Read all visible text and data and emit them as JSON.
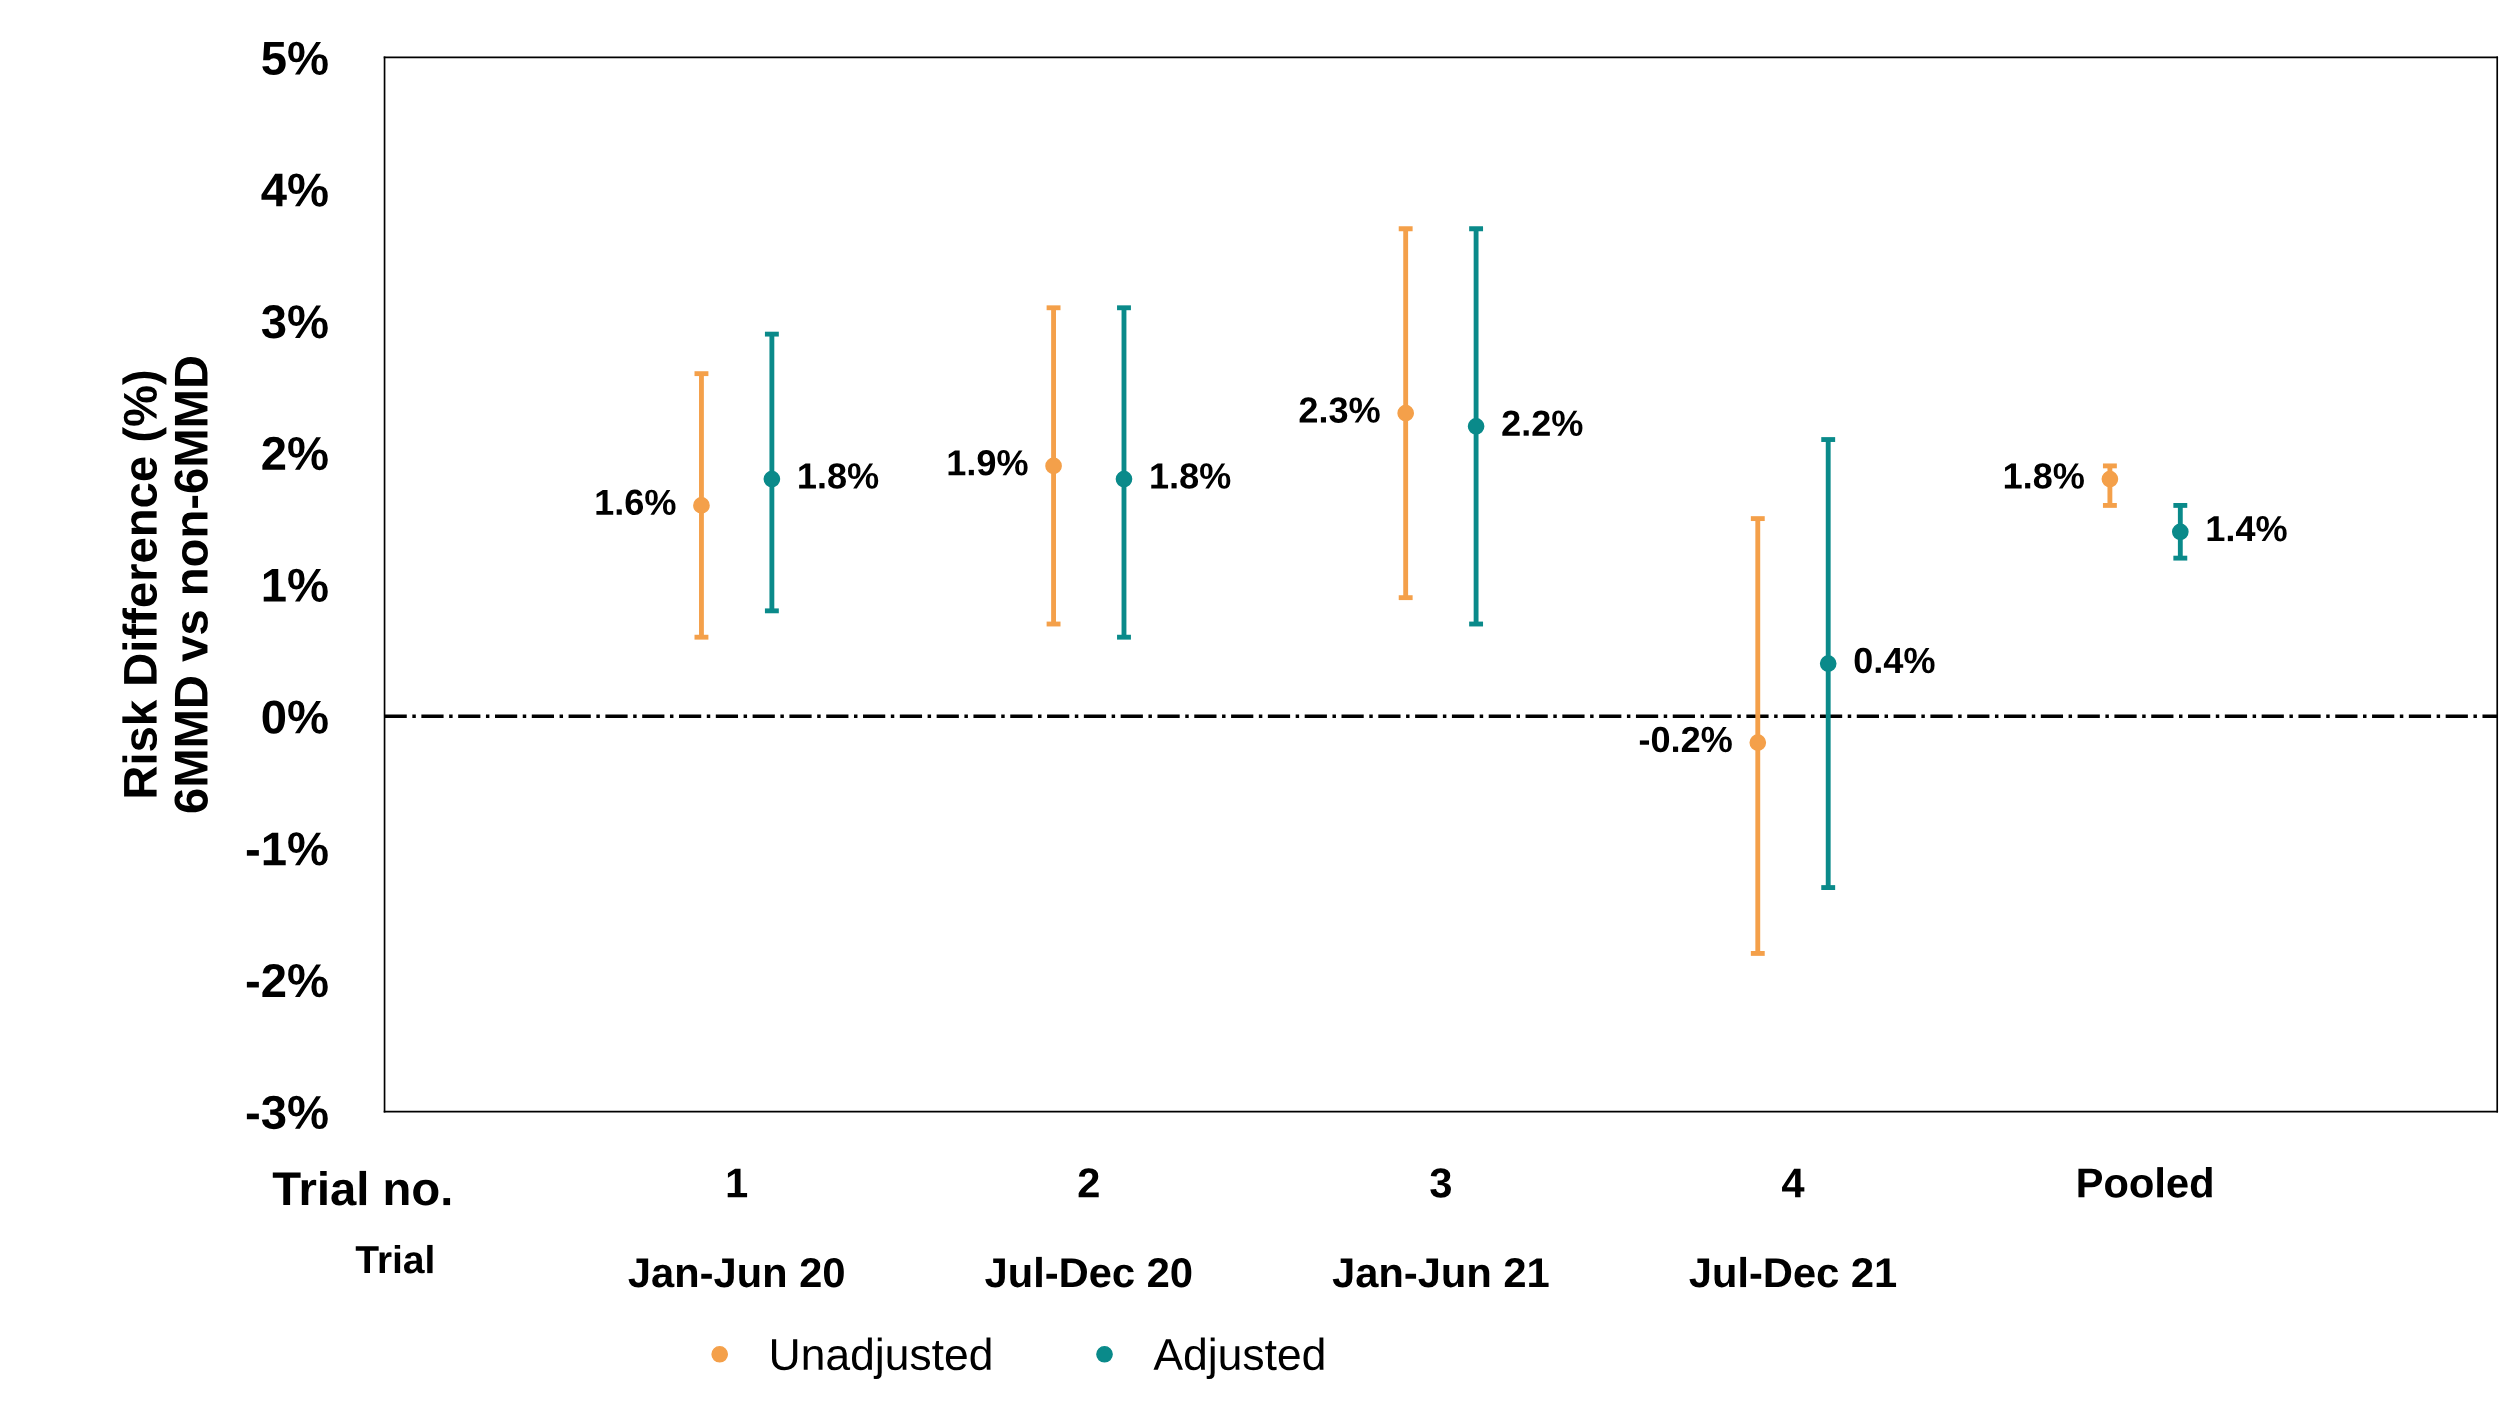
{
  "chart_data": {
    "type": "scatter",
    "ylabel": "Risk Difference (%)\n6MMD vs non-6MMD",
    "categories": [
      "1\n\nJan-Jun 20",
      "2\n\nJul-Dec 20",
      "3\n\nJan-Jun 21",
      "4\n\nJul-Dec 21",
      "Pooled"
    ],
    "series": [
      {
        "name": "Unadjusted",
        "color": "#f4a04a",
        "values": [
          1.6,
          1.9,
          2.3,
          -0.2,
          1.8
        ],
        "errors": [
          [
            0.6,
            2.6
          ],
          [
            0.7,
            3.1
          ],
          [
            0.9,
            3.7
          ],
          [
            -1.8,
            1.5
          ],
          [
            1.6,
            1.9
          ]
        ],
        "value_labels": [
          "1.6%",
          "1.9%",
          "2.3%",
          "-0.2%",
          "1.8%"
        ]
      },
      {
        "name": "Adjusted",
        "color": "#0a8a8a",
        "values": [
          1.8,
          1.8,
          2.2,
          0.4,
          1.4
        ],
        "errors": [
          [
            0.8,
            2.9
          ],
          [
            0.6,
            3.1
          ],
          [
            0.7,
            3.7
          ],
          [
            -1.3,
            2.1
          ],
          [
            1.2,
            1.6
          ]
        ],
        "value_labels": [
          "1.8%",
          "1.8%",
          "2.2%",
          "0.4%",
          "1.4%"
        ]
      }
    ],
    "ylim": [
      -3,
      5
    ],
    "yticks": [
      {
        "value": -3,
        "label": "-3%"
      },
      {
        "value": -2,
        "label": "-2%"
      },
      {
        "value": -1,
        "label": "-1%"
      },
      {
        "value": 0,
        "label": "0%"
      },
      {
        "value": 1,
        "label": "1%"
      },
      {
        "value": 2,
        "label": "2%"
      },
      {
        "value": 3,
        "label": "3%"
      },
      {
        "value": 4,
        "label": "4%"
      },
      {
        "value": 5,
        "label": "5%"
      }
    ],
    "ref_lines": [
      {
        "axis": "y",
        "value": 0,
        "color": "#000000",
        "line_style": "dashdot"
      }
    ],
    "annotations": [
      "Trial no.",
      "Trial"
    ],
    "marker": "circle",
    "grid": false,
    "legend": "bottom"
  }
}
